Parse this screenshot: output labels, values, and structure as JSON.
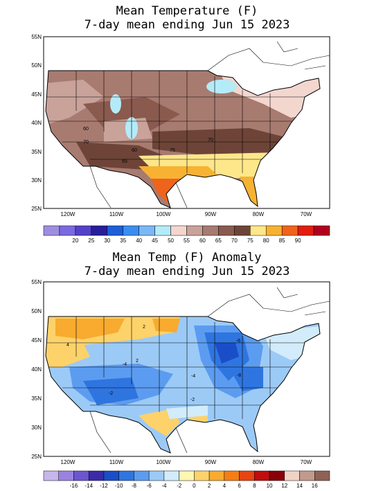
{
  "top": {
    "title_line1": "Mean Temperature (F)",
    "title_line2": "7-day mean ending Jun 15 2023",
    "lat_labels": [
      "55N",
      "50N",
      "45N",
      "40N",
      "35N",
      "30N",
      "25N"
    ],
    "lon_labels": [
      "120W",
      "110W",
      "100W",
      "90W",
      "80W",
      "70W"
    ],
    "contour_labels": [
      "60",
      "70",
      "60",
      "75",
      "70",
      "65"
    ],
    "legend": {
      "colors": [
        "#9f8ee0",
        "#7a6ae0",
        "#5441c8",
        "#281e9a",
        "#1c5fd8",
        "#3a8ef0",
        "#7ab8f5",
        "#b4ebf8",
        "#f3d7cf",
        "#c9a29a",
        "#a87b70",
        "#8a5a4f",
        "#6e4438",
        "#fde78a",
        "#f7b233",
        "#f0631c",
        "#e21d10",
        "#b0001f"
      ],
      "ticks": [
        "20",
        "25",
        "30",
        "35",
        "40",
        "45",
        "50",
        "55",
        "60",
        "65",
        "70",
        "75",
        "80",
        "85",
        "90"
      ]
    }
  },
  "bottom": {
    "title_line1": "Mean Temp (F) Anomaly",
    "title_line2": "7-day mean ending Jun 15 2023",
    "lat_labels": [
      "55N",
      "50N",
      "45N",
      "40N",
      "35N",
      "30N",
      "25N"
    ],
    "lon_labels": [
      "120W",
      "110W",
      "100W",
      "90W",
      "80W",
      "70W"
    ],
    "contour_labels": [
      "2",
      "4",
      "-4",
      "2",
      "-2",
      "-4",
      "-6",
      "-8",
      "-2"
    ],
    "legend": {
      "colors": [
        "#c7b6ec",
        "#9a82e0",
        "#6c56d0",
        "#3a2ba8",
        "#1a4ec8",
        "#2f75e0",
        "#5c9cf0",
        "#9ccaf7",
        "#d2ecfb",
        "#fff6b0",
        "#fdd26a",
        "#f8ab2e",
        "#f67d14",
        "#e84410",
        "#c00e0e",
        "#8a0008",
        "#f1d3c6",
        "#c19a8c",
        "#8e6254"
      ],
      "ticks": [
        "-16",
        "-14",
        "-12",
        "-10",
        "-8",
        "-6",
        "-4",
        "-2",
        "0",
        "2",
        "4",
        "6",
        "8",
        "10",
        "12",
        "14",
        "16"
      ]
    }
  }
}
